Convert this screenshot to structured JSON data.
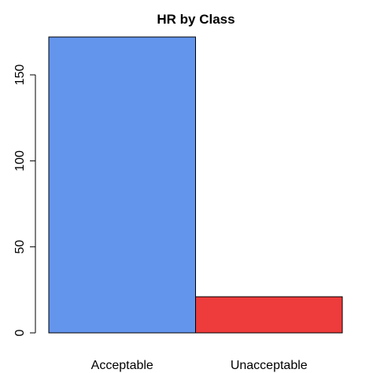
{
  "chart_data": {
    "type": "bar",
    "title": "HR by Class",
    "xlabel": "",
    "ylabel": "",
    "categories": [
      "Acceptable",
      "Unacceptable"
    ],
    "values": [
      172,
      21
    ],
    "colors": [
      "#6495ED",
      "#EE3B3B"
    ],
    "ylim": [
      0,
      172
    ],
    "yticks": [
      0,
      50,
      100,
      150
    ],
    "grid": false
  }
}
